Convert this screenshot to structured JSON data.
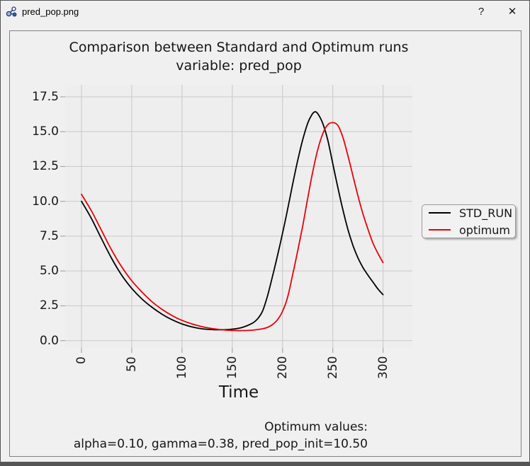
{
  "window": {
    "title": "pred_pop.png",
    "help_button": "?",
    "close_button": "✕"
  },
  "chart_data": {
    "type": "line",
    "title": "Comparison between Standard and Optimum runs",
    "subtitle": "variable: pred_pop",
    "xlabel": "Time",
    "ylabel": "",
    "x_tick_labels": [
      "0",
      "50",
      "100",
      "150",
      "200",
      "250",
      "300"
    ],
    "x_tick_values": [
      0,
      50,
      100,
      150,
      200,
      250,
      300
    ],
    "y_tick_labels": [
      "17.5",
      "15.0",
      "12.5",
      "10.0",
      "7.5",
      "5.0",
      "2.5",
      "0.0"
    ],
    "y_tick_values": [
      17.5,
      15.0,
      12.5,
      10.0,
      7.5,
      5.0,
      2.5,
      0.0
    ],
    "xlim": [
      -16,
      330
    ],
    "ylim": [
      -0.5,
      18.4
    ],
    "grid": true,
    "legend": {
      "position": "right-outside-center",
      "entries": [
        "STD_RUN",
        "optimum"
      ]
    },
    "series": [
      {
        "name": "STD_RUN",
        "color": "#000000",
        "points": [
          [
            0,
            10.0
          ],
          [
            10,
            8.75
          ],
          [
            20,
            7.3
          ],
          [
            30,
            5.9
          ],
          [
            40,
            4.7
          ],
          [
            50,
            3.75
          ],
          [
            60,
            3.0
          ],
          [
            70,
            2.4
          ],
          [
            80,
            1.9
          ],
          [
            90,
            1.5
          ],
          [
            100,
            1.2
          ],
          [
            110,
            0.98
          ],
          [
            120,
            0.85
          ],
          [
            130,
            0.79
          ],
          [
            140,
            0.78
          ],
          [
            150,
            0.82
          ],
          [
            160,
            0.95
          ],
          [
            170,
            1.25
          ],
          [
            175,
            1.55
          ],
          [
            180,
            2.1
          ],
          [
            185,
            3.2
          ],
          [
            190,
            4.6
          ],
          [
            195,
            6.1
          ],
          [
            200,
            7.7
          ],
          [
            205,
            9.4
          ],
          [
            210,
            11.2
          ],
          [
            215,
            12.9
          ],
          [
            220,
            14.4
          ],
          [
            225,
            15.6
          ],
          [
            229,
            16.2
          ],
          [
            232,
            16.42
          ],
          [
            235,
            16.3
          ],
          [
            240,
            15.6
          ],
          [
            245,
            14.4
          ],
          [
            250,
            12.7
          ],
          [
            255,
            11.0
          ],
          [
            260,
            9.4
          ],
          [
            265,
            8.0
          ],
          [
            270,
            6.85
          ],
          [
            275,
            5.95
          ],
          [
            280,
            5.25
          ],
          [
            285,
            4.7
          ],
          [
            290,
            4.2
          ],
          [
            295,
            3.7
          ],
          [
            300,
            3.3
          ]
        ]
      },
      {
        "name": "optimum",
        "color": "#e8000b",
        "points": [
          [
            0,
            10.5
          ],
          [
            10,
            9.3
          ],
          [
            20,
            7.9
          ],
          [
            30,
            6.5
          ],
          [
            40,
            5.3
          ],
          [
            50,
            4.3
          ],
          [
            60,
            3.5
          ],
          [
            70,
            2.8
          ],
          [
            80,
            2.25
          ],
          [
            90,
            1.8
          ],
          [
            100,
            1.45
          ],
          [
            110,
            1.2
          ],
          [
            120,
            1.0
          ],
          [
            130,
            0.87
          ],
          [
            140,
            0.78
          ],
          [
            150,
            0.73
          ],
          [
            160,
            0.72
          ],
          [
            170,
            0.75
          ],
          [
            180,
            0.85
          ],
          [
            185,
            0.95
          ],
          [
            190,
            1.15
          ],
          [
            195,
            1.5
          ],
          [
            200,
            2.1
          ],
          [
            205,
            3.1
          ],
          [
            210,
            4.7
          ],
          [
            215,
            6.4
          ],
          [
            220,
            8.2
          ],
          [
            225,
            10.2
          ],
          [
            230,
            12.1
          ],
          [
            235,
            13.7
          ],
          [
            240,
            14.85
          ],
          [
            245,
            15.5
          ],
          [
            250,
            15.65
          ],
          [
            255,
            15.45
          ],
          [
            260,
            14.6
          ],
          [
            265,
            13.3
          ],
          [
            270,
            11.85
          ],
          [
            275,
            10.4
          ],
          [
            280,
            9.1
          ],
          [
            285,
            8.0
          ],
          [
            290,
            7.0
          ],
          [
            295,
            6.25
          ],
          [
            300,
            5.6
          ]
        ]
      }
    ],
    "annotation": {
      "line1": "Optimum values:",
      "line2": "alpha=0.10, gamma=0.38, pred_pop_init=10.50"
    }
  },
  "colors": {
    "figure_bg": "#f0f0f0",
    "plot_bg": "#eeeeee",
    "grid": "#cdcdcd",
    "tick": "#a8a8a8",
    "std_run": "#000000",
    "optimum": "#e8000b"
  }
}
